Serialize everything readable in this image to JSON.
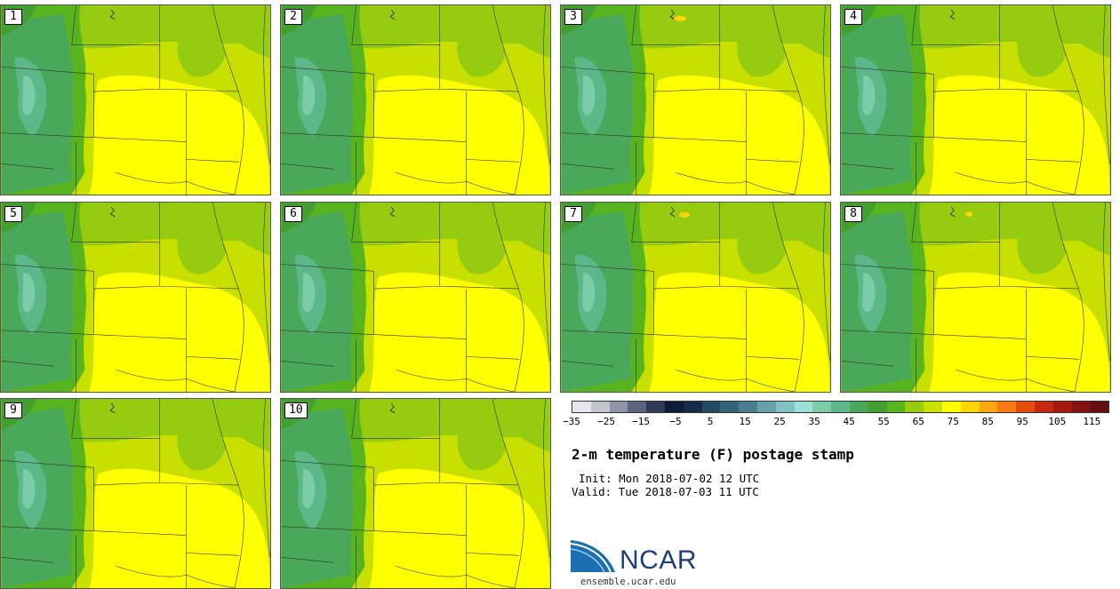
{
  "panels": [
    {
      "label": "1"
    },
    {
      "label": "2"
    },
    {
      "label": "3"
    },
    {
      "label": "4"
    },
    {
      "label": "5"
    },
    {
      "label": "6"
    },
    {
      "label": "7"
    },
    {
      "label": "8"
    },
    {
      "label": "9"
    },
    {
      "label": "10"
    }
  ],
  "colorbar": {
    "colors": [
      "#e6e6ec",
      "#c4c4cc",
      "#9094a6",
      "#5e6480",
      "#313a58",
      "#0d1a38",
      "#152c48",
      "#244a62",
      "#34637a",
      "#4a7e92",
      "#66a0ac",
      "#82c2c4",
      "#9ce0d8",
      "#7ccca8",
      "#5cb888",
      "#4aa85a",
      "#43a030",
      "#58b41e",
      "#96cc10",
      "#cae000",
      "#ffff00",
      "#ffd50a",
      "#ffa511",
      "#f87812",
      "#e64c10",
      "#c82810",
      "#a41810",
      "#821210",
      "#641010"
    ],
    "ticks": [
      "−35",
      "−25",
      "−15",
      "−5",
      "5",
      "15",
      "25",
      "35",
      "45",
      "55",
      "65",
      "75",
      "85",
      "95",
      "105",
      "115"
    ]
  },
  "title": "2-m temperature (F) postage stamp",
  "init": "Init: Mon 2018-07-02 12 UTC",
  "valid": "Valid: Tue 2018-07-03 11 UTC",
  "logo": {
    "name": "NCAR",
    "url": "ensemble.ucar.edu"
  }
}
